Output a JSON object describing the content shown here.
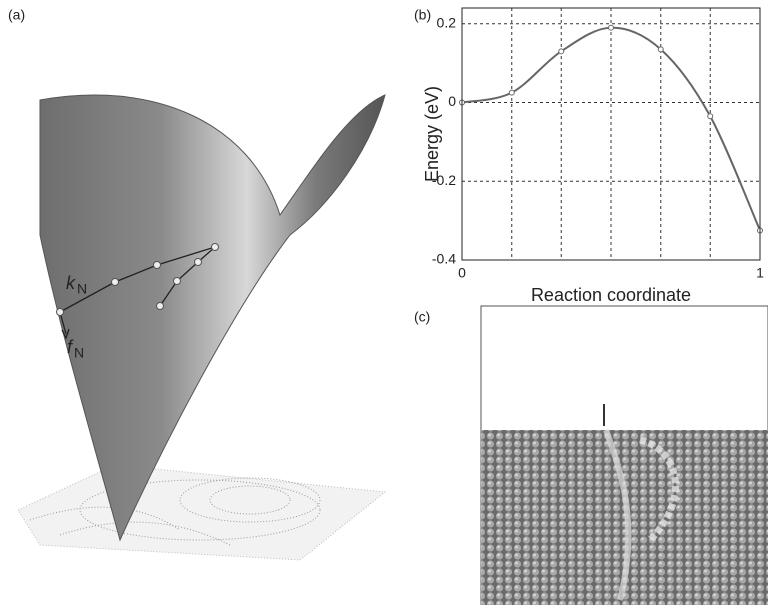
{
  "panels": {
    "a": {
      "label": "(a)",
      "k": "k",
      "k_sub": "N",
      "f": "f",
      "f_sub": "N"
    },
    "b": {
      "label": "(b)"
    },
    "c": {
      "label": "(c)"
    }
  },
  "chart_data": {
    "type": "line",
    "xlabel": "Reaction coordinate",
    "ylabel": "Energy (eV)",
    "x": [
      0,
      0.167,
      0.333,
      0.5,
      0.667,
      0.833,
      1
    ],
    "series": [
      {
        "color": "#666666",
        "values": [
          0,
          0.025,
          0.13,
          0.19,
          0.135,
          -0.035,
          -0.325
        ]
      }
    ],
    "xlim": [
      0,
      1
    ],
    "xticks": [
      0,
      1
    ],
    "ylim": [
      -0.4,
      0.24
    ],
    "yticks": [
      -0.4,
      -0.2,
      0,
      0.2
    ],
    "grid": true
  }
}
